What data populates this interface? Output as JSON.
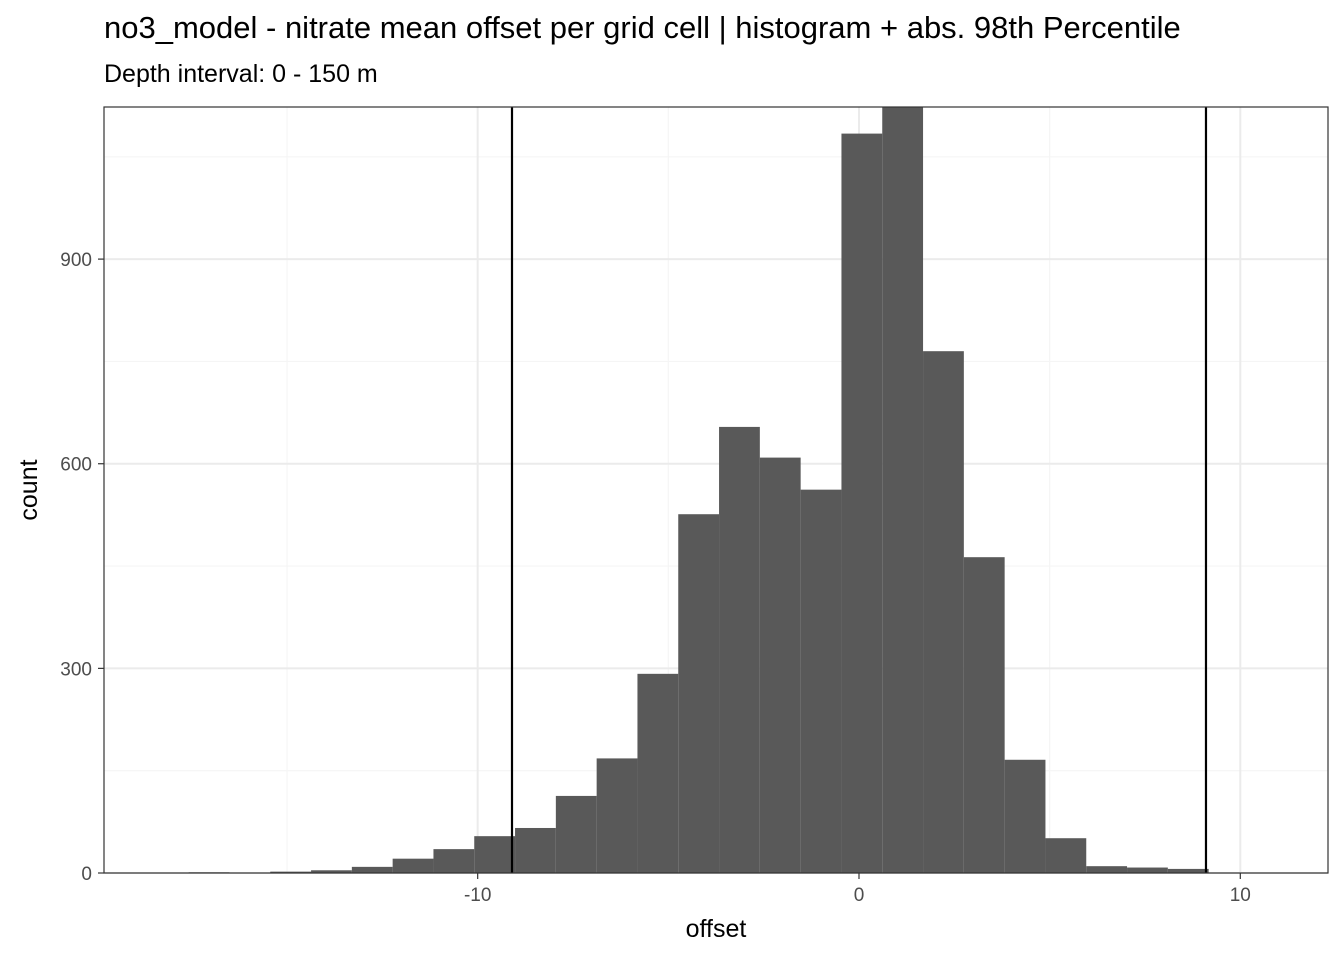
{
  "title": "no3_model  -  nitrate mean offset per grid cell | histogram + abs. 98th Percentile",
  "subtitle": "Depth interval: 0 - 150 m",
  "chart_data": {
    "type": "bar",
    "subtype": "histogram",
    "xlabel": "offset",
    "ylabel": "count",
    "xlim": [
      -19.8,
      12.3
    ],
    "ylim": [
      0,
      1123
    ],
    "x_ticks": [
      -10,
      0,
      10
    ],
    "x_tick_labels": [
      "-10",
      "0",
      "10"
    ],
    "y_ticks": [
      0,
      300,
      600,
      900
    ],
    "y_tick_labels": [
      "0",
      "300",
      "600",
      "900"
    ],
    "bin_width": 1.07,
    "bins": [
      {
        "x0": -17.58,
        "x1": -16.51,
        "count": 1
      },
      {
        "x0": -16.51,
        "x1": -15.44,
        "count": 0
      },
      {
        "x0": -15.44,
        "x1": -14.37,
        "count": 2
      },
      {
        "x0": -14.37,
        "x1": -13.3,
        "count": 4
      },
      {
        "x0": -13.3,
        "x1": -12.23,
        "count": 9
      },
      {
        "x0": -12.23,
        "x1": -11.16,
        "count": 21
      },
      {
        "x0": -11.16,
        "x1": -10.09,
        "count": 35
      },
      {
        "x0": -10.09,
        "x1": -9.02,
        "count": 54
      },
      {
        "x0": -9.02,
        "x1": -7.95,
        "count": 66
      },
      {
        "x0": -7.95,
        "x1": -6.88,
        "count": 113
      },
      {
        "x0": -6.88,
        "x1": -5.81,
        "count": 168
      },
      {
        "x0": -5.81,
        "x1": -4.74,
        "count": 292
      },
      {
        "x0": -4.74,
        "x1": -3.67,
        "count": 526
      },
      {
        "x0": -3.67,
        "x1": -2.6,
        "count": 654
      },
      {
        "x0": -2.6,
        "x1": -1.53,
        "count": 609
      },
      {
        "x0": -1.53,
        "x1": -0.46,
        "count": 562
      },
      {
        "x0": -0.46,
        "x1": 0.61,
        "count": 1084
      },
      {
        "x0": 0.61,
        "x1": 1.68,
        "count": 1123
      },
      {
        "x0": 1.68,
        "x1": 2.75,
        "count": 765
      },
      {
        "x0": 2.75,
        "x1": 3.82,
        "count": 463
      },
      {
        "x0": 3.82,
        "x1": 4.89,
        "count": 166
      },
      {
        "x0": 4.89,
        "x1": 5.96,
        "count": 51
      },
      {
        "x0": 5.96,
        "x1": 7.03,
        "count": 10
      },
      {
        "x0": 7.03,
        "x1": 8.1,
        "count": 8
      },
      {
        "x0": 8.1,
        "x1": 9.17,
        "count": 6
      }
    ],
    "vlines": [
      -9.1,
      9.1
    ],
    "grid": true,
    "colors": {
      "bar": "#595959",
      "vline": "#000000",
      "grid_major": "#ebebeb",
      "grid_minor": "#f5f5f5",
      "panel_border": "#333333"
    }
  }
}
